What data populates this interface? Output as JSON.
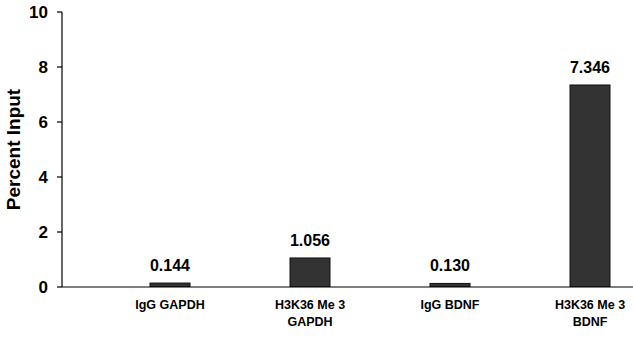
{
  "chart_data": {
    "type": "bar",
    "y_label": "Percent Input",
    "categories": [
      "IgG GAPDH",
      "H3K36 Me 3\nGAPDH",
      "IgG BDNF",
      "H3K36 Me 3\nBDNF"
    ],
    "values": [
      0.144,
      1.056,
      0.13,
      7.346
    ],
    "value_labels": [
      "0.144",
      "1.056",
      "0.130",
      "7.346"
    ],
    "color": "#333333",
    "ylim": [
      0,
      10
    ],
    "yticks": [
      0,
      2,
      4,
      6,
      8,
      10
    ],
    "grid": false,
    "data_labels": true
  }
}
